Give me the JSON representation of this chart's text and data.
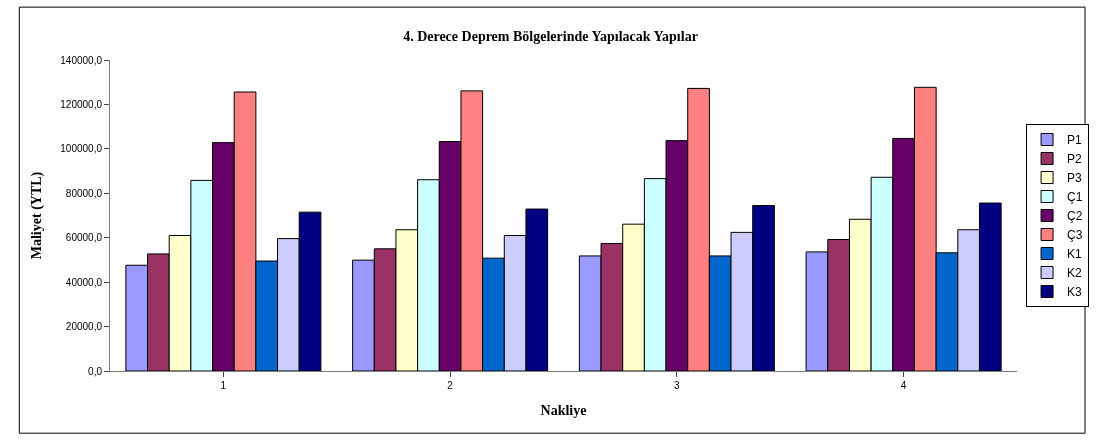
{
  "chart_data": {
    "type": "bar",
    "title": "4. Derece Deprem Bölgelerinde Yapılacak Yapılar",
    "xlabel": "Nakliye",
    "ylabel": "Maliyet (YTL)",
    "categories": [
      "1",
      "2",
      "3",
      "4"
    ],
    "series": [
      {
        "name": "P1",
        "color": "#9999ff",
        "values": [
          47600,
          49900,
          51800,
          53600
        ]
      },
      {
        "name": "P2",
        "color": "#993366",
        "values": [
          52700,
          55000,
          57400,
          59200
        ]
      },
      {
        "name": "P3",
        "color": "#ffffcc",
        "values": [
          61000,
          63600,
          66100,
          68300
        ]
      },
      {
        "name": "Ç1",
        "color": "#ccffff",
        "values": [
          85800,
          86100,
          86600,
          87200
        ]
      },
      {
        "name": "Ç2",
        "color": "#660066",
        "values": [
          102800,
          103300,
          103700,
          104700
        ]
      },
      {
        "name": "Ç3",
        "color": "#ff8080",
        "values": [
          125600,
          126100,
          127200,
          127700
        ]
      },
      {
        "name": "K1",
        "color": "#0066cc",
        "values": [
          49500,
          50800,
          51800,
          53200
        ]
      },
      {
        "name": "K2",
        "color": "#ccccff",
        "values": [
          59600,
          61000,
          62400,
          63600
        ]
      },
      {
        "name": "K3",
        "color": "#000080",
        "values": [
          71500,
          72900,
          74500,
          75600
        ]
      }
    ],
    "ylim": [
      0,
      140000
    ],
    "yticks": [
      {
        "value": 0,
        "label": "0,0"
      },
      {
        "value": 20000,
        "label": "20000,0"
      },
      {
        "value": 40000,
        "label": "40000,0"
      },
      {
        "value": 60000,
        "label": "60000,0"
      },
      {
        "value": 80000,
        "label": "80000,0"
      },
      {
        "value": 100000,
        "label": "100000,0"
      },
      {
        "value": 120000,
        "label": "120000,0"
      },
      {
        "value": 140000,
        "label": "140000,0"
      }
    ],
    "legend": "right"
  }
}
